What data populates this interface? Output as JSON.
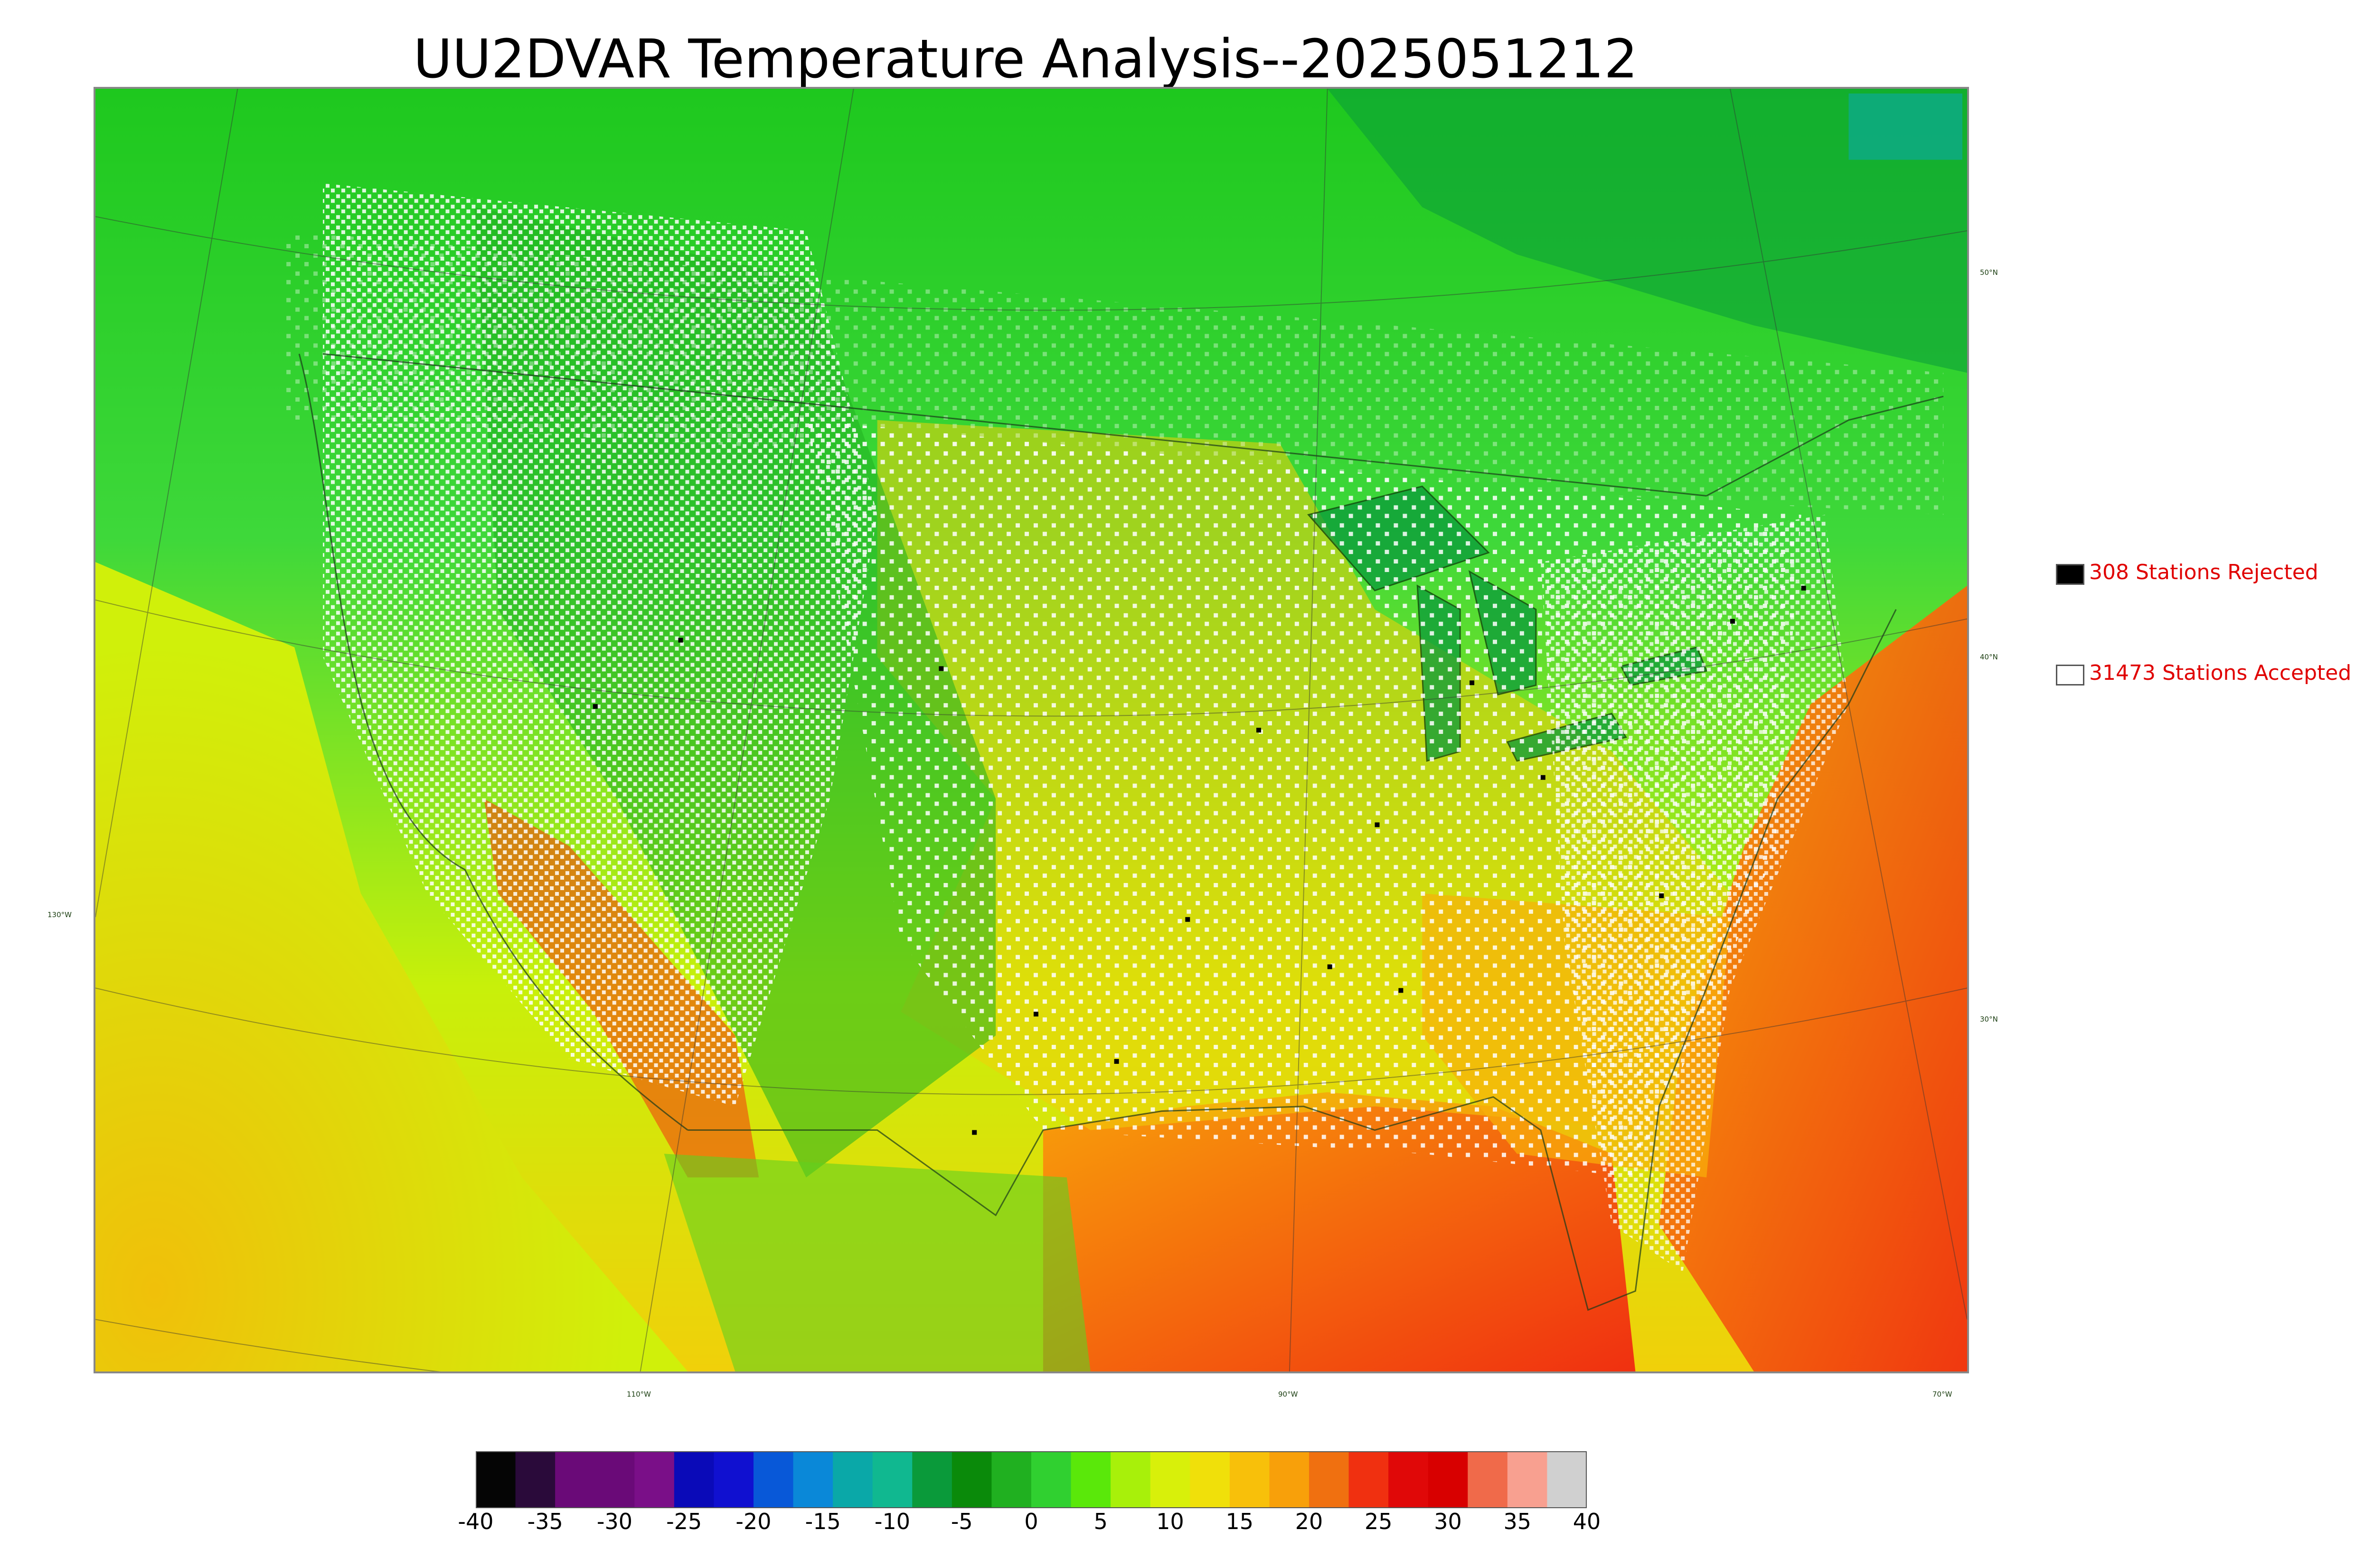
{
  "title": "UU2DVAR Temperature Analysis--2025051212",
  "map": {
    "lat_labels": [
      "50°N",
      "40°N",
      "30°N"
    ],
    "lon_labels": [
      "130°W",
      "110°W",
      "90°W",
      "70°W"
    ]
  },
  "legend": {
    "rejected": {
      "label": "308 Stations Rejected",
      "color": "#000000"
    },
    "accepted": {
      "label": "31473 Stations Accepted",
      "color": "#ffffff"
    }
  },
  "colorbar": {
    "ticks": [
      "-40",
      "-35",
      "-30",
      "-25",
      "-20",
      "-15",
      "-10",
      "-5",
      "0",
      "5",
      "10",
      "15",
      "20",
      "25",
      "30",
      "35",
      "40"
    ],
    "colors": [
      "#050505",
      "#2a0a3a",
      "#6a0a78",
      "#6a0a78",
      "#7a0f88",
      "#0a0ab8",
      "#1010d0",
      "#0858d8",
      "#0a88d8",
      "#0aa8a8",
      "#10b890",
      "#0a9a3a",
      "#0a8a0a",
      "#20b020",
      "#30d030",
      "#5ae80a",
      "#a8f00a",
      "#d8f00a",
      "#f0e00a",
      "#f8c00a",
      "#f8a00a",
      "#f07010",
      "#f03010",
      "#e00808",
      "#d80000",
      "#f06a4a",
      "#f8a090",
      "#d0d0d0"
    ]
  }
}
